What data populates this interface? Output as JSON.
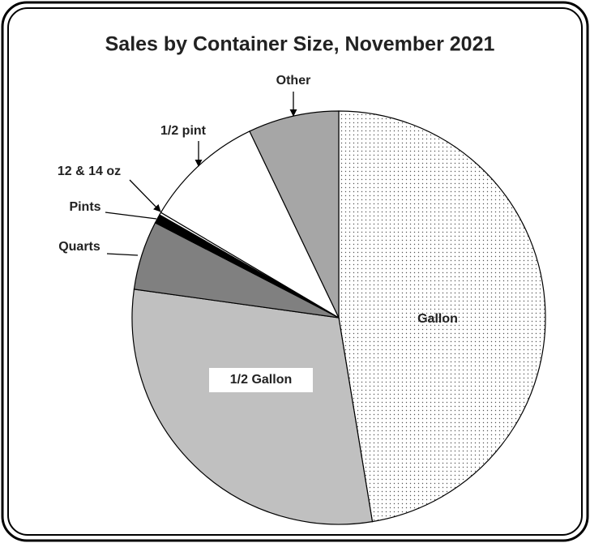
{
  "chart_data": {
    "type": "pie",
    "title": "Sales by Container Size, November 2021",
    "categories": [
      "Gallon",
      "1/2 Gallon",
      "Quarts",
      "Pints",
      "12 & 14 oz",
      "1/2 pint",
      "Other"
    ],
    "values": [
      47.4,
      29.8,
      5.4,
      0.7,
      0.2,
      9.4,
      7.1
    ],
    "colors": [
      "#ffffff",
      "#c0c0c0",
      "#808080",
      "#000000",
      "#ffffff",
      "#ffffff",
      "#a6a6a6"
    ],
    "patterns": [
      "dots",
      null,
      null,
      null,
      null,
      null,
      null
    ]
  }
}
